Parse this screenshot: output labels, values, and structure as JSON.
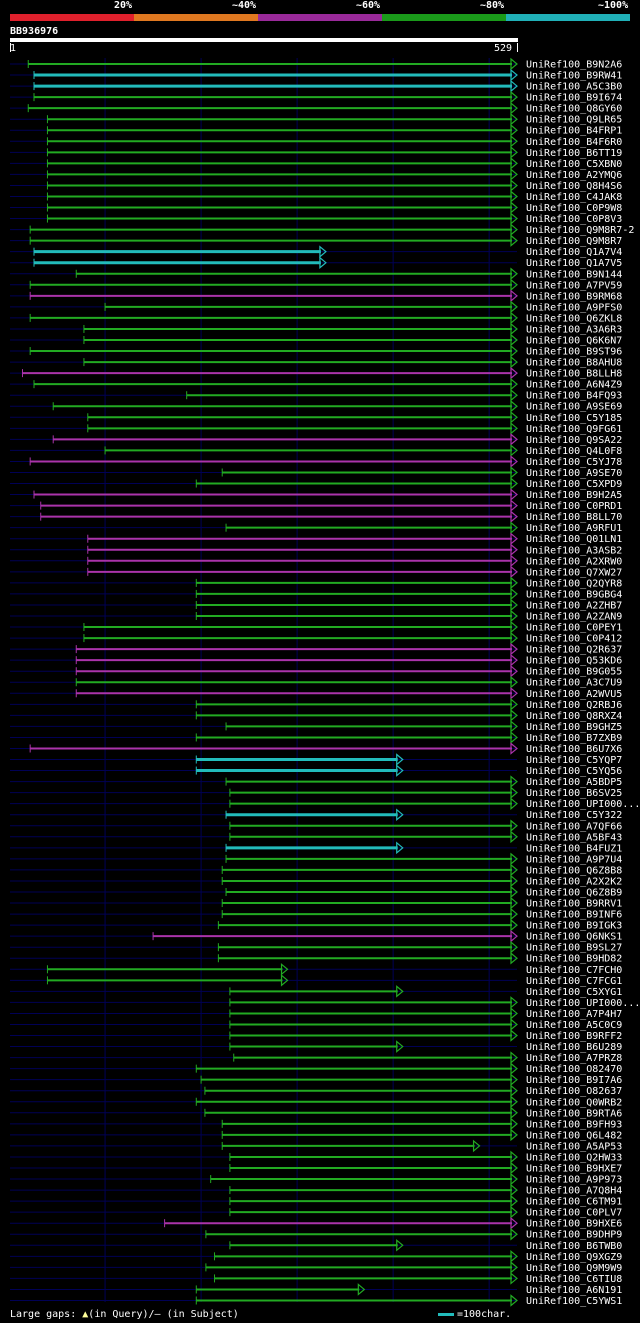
{
  "legend": [
    {
      "label": "20%",
      "color": "#e0202c"
    },
    {
      "label": "~40%",
      "color": "#e07820"
    },
    {
      "label": "~60%",
      "color": "#9a2a9a"
    },
    {
      "label": "~80%",
      "color": "#1a9a1a"
    },
    {
      "label": "~100%",
      "color": "#20b0b8"
    }
  ],
  "query": {
    "id": "BB936976",
    "start": "1",
    "end": "529",
    "length": 529
  },
  "colors": {
    "G": "#22aa22",
    "P": "#aa33aa",
    "C": "#22bbbb",
    "bg_line": "#000055",
    "gap": "#ffff99"
  },
  "hits": [
    {
      "name": "UniRef100_B9N2A6",
      "start": 20,
      "end": 529,
      "cls": "G"
    },
    {
      "name": "UniRef100_B9RW41",
      "start": 26,
      "end": 529,
      "cls": "C"
    },
    {
      "name": "UniRef100_A5C3B0",
      "start": 26,
      "end": 529,
      "cls": "C"
    },
    {
      "name": "UniRef100_B9I674",
      "start": 26,
      "end": 529,
      "cls": "G"
    },
    {
      "name": "UniRef100_Q8GY60",
      "start": 20,
      "end": 529,
      "cls": "G"
    },
    {
      "name": "UniRef100_Q9LR65",
      "start": 40,
      "end": 529,
      "cls": "G"
    },
    {
      "name": "UniRef100_B4FRP1",
      "start": 40,
      "end": 529,
      "cls": "G"
    },
    {
      "name": "UniRef100_B4F6R0",
      "start": 40,
      "end": 529,
      "cls": "G"
    },
    {
      "name": "UniRef100_B6TT19",
      "start": 40,
      "end": 529,
      "cls": "G"
    },
    {
      "name": "UniRef100_C5XBN0",
      "start": 40,
      "end": 529,
      "cls": "G"
    },
    {
      "name": "UniRef100_A2YMQ6",
      "start": 40,
      "end": 529,
      "cls": "G"
    },
    {
      "name": "UniRef100_Q8H4S6",
      "start": 40,
      "end": 529,
      "cls": "G"
    },
    {
      "name": "UniRef100_C4JAK8",
      "start": 40,
      "end": 529,
      "cls": "G"
    },
    {
      "name": "UniRef100_C0P9W8",
      "start": 40,
      "end": 529,
      "cls": "G"
    },
    {
      "name": "UniRef100_C0P8V3",
      "start": 40,
      "end": 529,
      "cls": "G"
    },
    {
      "name": "UniRef100_Q9M8R7-2",
      "start": 22,
      "end": 529,
      "cls": "G"
    },
    {
      "name": "UniRef100_Q9M8R7",
      "start": 22,
      "end": 529,
      "cls": "G"
    },
    {
      "name": "UniRef100_Q1A7V4",
      "start": 26,
      "end": 330,
      "cls": "C"
    },
    {
      "name": "UniRef100_Q1A7V5",
      "start": 26,
      "end": 330,
      "cls": "C"
    },
    {
      "name": "UniRef100_B9N144",
      "start": 70,
      "end": 529,
      "cls": "G"
    },
    {
      "name": "UniRef100_A7PV59",
      "start": 22,
      "end": 529,
      "cls": "G"
    },
    {
      "name": "UniRef100_B9RM68",
      "start": 22,
      "end": 529,
      "cls": "P"
    },
    {
      "name": "UniRef100_A9PFS0",
      "start": 100,
      "end": 529,
      "cls": "G"
    },
    {
      "name": "UniRef100_Q6ZKL8",
      "start": 22,
      "end": 529,
      "cls": "G"
    },
    {
      "name": "UniRef100_A3A6R3",
      "start": 78,
      "end": 529,
      "cls": "G"
    },
    {
      "name": "UniRef100_Q6K6N7",
      "start": 78,
      "end": 529,
      "cls": "G"
    },
    {
      "name": "UniRef100_B9ST96",
      "start": 22,
      "end": 529,
      "cls": "G"
    },
    {
      "name": "UniRef100_B8AHU8",
      "start": 78,
      "end": 529,
      "cls": "G"
    },
    {
      "name": "UniRef100_B8LLH8",
      "start": 14,
      "end": 529,
      "cls": "P"
    },
    {
      "name": "UniRef100_A6N4Z9",
      "start": 26,
      "end": 529,
      "cls": "G"
    },
    {
      "name": "UniRef100_B4FQ93",
      "start": 185,
      "end": 529,
      "cls": "G"
    },
    {
      "name": "UniRef100_A9SE69",
      "start": 46,
      "end": 529,
      "cls": "G"
    },
    {
      "name": "UniRef100_C5Y185",
      "start": 82,
      "end": 529,
      "cls": "G"
    },
    {
      "name": "UniRef100_Q9FG61",
      "start": 82,
      "end": 529,
      "cls": "G"
    },
    {
      "name": "UniRef100_Q9SA22",
      "start": 46,
      "end": 529,
      "cls": "P"
    },
    {
      "name": "UniRef100_Q4L0F8",
      "start": 100,
      "end": 529,
      "cls": "G"
    },
    {
      "name": "UniRef100_C5YJ78",
      "start": 22,
      "end": 529,
      "cls": "P"
    },
    {
      "name": "UniRef100_A9SE70",
      "start": 222,
      "end": 529,
      "cls": "G"
    },
    {
      "name": "UniRef100_C5XPD9",
      "start": 195,
      "end": 529,
      "cls": "G"
    },
    {
      "name": "UniRef100_B9H2A5",
      "start": 26,
      "end": 529,
      "cls": "P"
    },
    {
      "name": "UniRef100_C0PRD1",
      "start": 33,
      "end": 529,
      "cls": "P"
    },
    {
      "name": "UniRef100_B8LL70",
      "start": 33,
      "end": 529,
      "cls": "P"
    },
    {
      "name": "UniRef100_A9RFU1",
      "start": 226,
      "end": 529,
      "cls": "G"
    },
    {
      "name": "UniRef100_Q01LN1",
      "start": 82,
      "end": 529,
      "cls": "P"
    },
    {
      "name": "UniRef100_A3ASB2",
      "start": 82,
      "end": 529,
      "cls": "P"
    },
    {
      "name": "UniRef100_A2XRW0",
      "start": 82,
      "end": 529,
      "cls": "P"
    },
    {
      "name": "UniRef100_Q7XW27",
      "start": 82,
      "end": 529,
      "cls": "P"
    },
    {
      "name": "UniRef100_Q2QYR8",
      "start": 195,
      "end": 529,
      "cls": "G"
    },
    {
      "name": "UniRef100_B9GBG4",
      "start": 195,
      "end": 529,
      "cls": "G"
    },
    {
      "name": "UniRef100_A2ZHB7",
      "start": 195,
      "end": 529,
      "cls": "G"
    },
    {
      "name": "UniRef100_A2ZAN9",
      "start": 195,
      "end": 529,
      "cls": "G"
    },
    {
      "name": "UniRef100_C0PEY1",
      "start": 78,
      "end": 529,
      "cls": "G"
    },
    {
      "name": "UniRef100_C0P412",
      "start": 78,
      "end": 529,
      "cls": "G"
    },
    {
      "name": "UniRef100_Q2R637",
      "start": 70,
      "end": 529,
      "cls": "P"
    },
    {
      "name": "UniRef100_Q53KD6",
      "start": 70,
      "end": 529,
      "cls": "P"
    },
    {
      "name": "UniRef100_B9G055",
      "start": 70,
      "end": 529,
      "cls": "P"
    },
    {
      "name": "UniRef100_A3C7U9",
      "start": 70,
      "end": 529,
      "cls": "G"
    },
    {
      "name": "UniRef100_A2WVU5",
      "start": 70,
      "end": 529,
      "cls": "P"
    },
    {
      "name": "UniRef100_Q2RBJ6",
      "start": 195,
      "end": 529,
      "cls": "G"
    },
    {
      "name": "UniRef100_Q8RXZ4",
      "start": 195,
      "end": 529,
      "cls": "G"
    },
    {
      "name": "UniRef100_B9GHZ5",
      "start": 226,
      "end": 529,
      "cls": "G"
    },
    {
      "name": "UniRef100_B7ZXB9",
      "start": 195,
      "end": 529,
      "cls": "G"
    },
    {
      "name": "UniRef100_B6U7X6",
      "start": 22,
      "end": 529,
      "cls": "P"
    },
    {
      "name": "UniRef100_C5YQP7",
      "start": 195,
      "end": 410,
      "cls": "C"
    },
    {
      "name": "UniRef100_C5YQ56",
      "start": 195,
      "end": 410,
      "cls": "C"
    },
    {
      "name": "UniRef100_A5BDP5",
      "start": 226,
      "end": 529,
      "cls": "G"
    },
    {
      "name": "UniRef100_B6SV25",
      "start": 230,
      "end": 529,
      "cls": "G"
    },
    {
      "name": "UniRef100_UPI000...",
      "start": 230,
      "end": 529,
      "cls": "G"
    },
    {
      "name": "UniRef100_C5Y322",
      "start": 226,
      "end": 410,
      "cls": "C"
    },
    {
      "name": "UniRef100_A7QF66",
      "start": 230,
      "end": 529,
      "cls": "G"
    },
    {
      "name": "UniRef100_A5BF43",
      "start": 230,
      "end": 529,
      "cls": "G"
    },
    {
      "name": "UniRef100_B4FUZ1",
      "start": 226,
      "end": 410,
      "cls": "C"
    },
    {
      "name": "UniRef100_A9P7U4",
      "start": 226,
      "end": 529,
      "cls": "G"
    },
    {
      "name": "UniRef100_Q6Z8B8",
      "start": 222,
      "end": 529,
      "cls": "G"
    },
    {
      "name": "UniRef100_A2X2K2",
      "start": 222,
      "end": 529,
      "cls": "G"
    },
    {
      "name": "UniRef100_Q6Z8B9",
      "start": 226,
      "end": 529,
      "cls": "G"
    },
    {
      "name": "UniRef100_B9RRV1",
      "start": 222,
      "end": 529,
      "cls": "G"
    },
    {
      "name": "UniRef100_B9INF6",
      "start": 222,
      "end": 529,
      "cls": "G"
    },
    {
      "name": "UniRef100_B9IGK3",
      "start": 218,
      "end": 529,
      "cls": "G"
    },
    {
      "name": "UniRef100_Q6NKS1",
      "start": 150,
      "end": 529,
      "cls": "P"
    },
    {
      "name": "UniRef100_B9SL27",
      "start": 218,
      "end": 529,
      "cls": "G"
    },
    {
      "name": "UniRef100_B9HD82",
      "start": 218,
      "end": 529,
      "cls": "G"
    },
    {
      "name": "UniRef100_C7FCH0",
      "start": 40,
      "end": 290,
      "cls": "G"
    },
    {
      "name": "UniRef100_C7FCG1",
      "start": 40,
      "end": 290,
      "cls": "G"
    },
    {
      "name": "UniRef100_C5XYG1",
      "start": 230,
      "end": 410,
      "cls": "G"
    },
    {
      "name": "UniRef100_UPI000...",
      "start": 230,
      "end": 529,
      "cls": "G"
    },
    {
      "name": "UniRef100_A7P4H7",
      "start": 230,
      "end": 529,
      "cls": "G"
    },
    {
      "name": "UniRef100_A5C0C9",
      "start": 230,
      "end": 529,
      "cls": "G"
    },
    {
      "name": "UniRef100_B9RFF2",
      "start": 230,
      "end": 529,
      "cls": "G"
    },
    {
      "name": "UniRef100_B6U289",
      "start": 230,
      "end": 410,
      "cls": "G"
    },
    {
      "name": "UniRef100_A7PRZ8",
      "start": 234,
      "end": 529,
      "cls": "G"
    },
    {
      "name": "UniRef100_O82470",
      "start": 195,
      "end": 529,
      "cls": "G"
    },
    {
      "name": "UniRef100_B9I7A6",
      "start": 200,
      "end": 529,
      "cls": "G"
    },
    {
      "name": "UniRef100_O82637",
      "start": 204,
      "end": 529,
      "cls": "G"
    },
    {
      "name": "UniRef100_Q0WRB2",
      "start": 195,
      "end": 529,
      "cls": "G"
    },
    {
      "name": "UniRef100_B9RTA6",
      "start": 204,
      "end": 529,
      "cls": "G"
    },
    {
      "name": "UniRef100_B9FH93",
      "start": 222,
      "end": 529,
      "cls": "G"
    },
    {
      "name": "UniRef100_Q6L482",
      "start": 222,
      "end": 529,
      "cls": "G"
    },
    {
      "name": "UniRef100_A5AP53",
      "start": 222,
      "end": 490,
      "cls": "G"
    },
    {
      "name": "UniRef100_Q2HW33",
      "start": 230,
      "end": 529,
      "cls": "G"
    },
    {
      "name": "UniRef100_B9HXE7",
      "start": 230,
      "end": 529,
      "cls": "G"
    },
    {
      "name": "UniRef100_A9P973",
      "start": 210,
      "end": 529,
      "cls": "G"
    },
    {
      "name": "UniRef100_A7Q8H4",
      "start": 230,
      "end": 529,
      "cls": "G"
    },
    {
      "name": "UniRef100_C6TM91",
      "start": 230,
      "end": 529,
      "cls": "G"
    },
    {
      "name": "UniRef100_C0PLV7",
      "start": 230,
      "end": 529,
      "cls": "G"
    },
    {
      "name": "UniRef100_B9HXE6",
      "start": 162,
      "end": 529,
      "cls": "P"
    },
    {
      "name": "UniRef100_B9DHP9",
      "start": 205,
      "end": 529,
      "cls": "G"
    },
    {
      "name": "UniRef100_B6TWB0",
      "start": 230,
      "end": 410,
      "cls": "G"
    },
    {
      "name": "UniRef100_Q9XGZ9",
      "start": 214,
      "end": 529,
      "cls": "G"
    },
    {
      "name": "UniRef100_Q9M9W9",
      "start": 205,
      "end": 529,
      "cls": "G"
    },
    {
      "name": "UniRef100_C6TIU8",
      "start": 214,
      "end": 529,
      "cls": "G"
    },
    {
      "name": "UniRef100_A6N191",
      "start": 195,
      "end": 370,
      "cls": "G"
    },
    {
      "name": "UniRef100_C5YWS1",
      "start": 195,
      "end": 529,
      "cls": "G"
    }
  ],
  "footer": {
    "prefix": "Large gaps:",
    "gap_mark": "▲",
    "mid": "(in Query)/– (in Subject)",
    "scale": "=100char."
  }
}
